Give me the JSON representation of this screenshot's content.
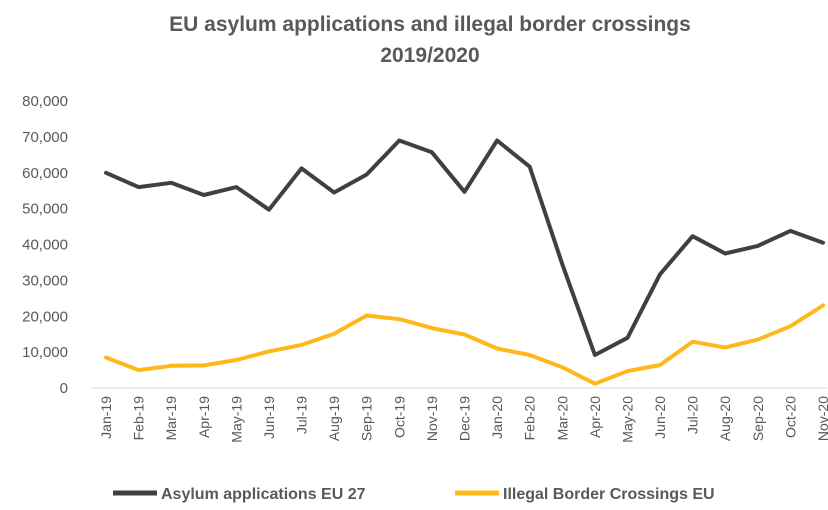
{
  "chart_data": {
    "type": "line",
    "title": "EU asylum applications  and illegal border crossings",
    "subtitle": "2019/2020",
    "xlabel": "",
    "ylabel": "",
    "ylim": [
      0,
      80000
    ],
    "y_ticks": [
      "80,000",
      "70,000",
      "60,000",
      "50,000",
      "40,000",
      "30,000",
      "20,000",
      "10,000",
      "0"
    ],
    "grid": false,
    "legend_position": "bottom",
    "categories": [
      "Jan-19",
      "Feb-19",
      "Mar-19",
      "Apr-19",
      "May-19",
      "Jun-19",
      "Jul-19",
      "Aug-19",
      "Sep-19",
      "Oct-19",
      "Nov-19",
      "Dec-19",
      "Jan-20",
      "Feb-20",
      "Mar-20",
      "Apr-20",
      "May-20",
      "Jun-20",
      "Jul-20",
      "Aug-20",
      "Sep-20",
      "Oct-20",
      "Nov-20"
    ],
    "series": [
      {
        "name": "Asylum applications EU 27",
        "color": "#404040",
        "values": [
          60000,
          56000,
          57200,
          53800,
          56000,
          49700,
          61200,
          54500,
          59500,
          69000,
          65700,
          54700,
          69000,
          61700,
          34500,
          9200,
          14000,
          31700,
          42300,
          37500,
          39600,
          43800,
          40500
        ]
      },
      {
        "name": "Illegal Border Crossings EU",
        "color": "#FFB81C",
        "values": [
          8500,
          5000,
          6200,
          6300,
          7800,
          10200,
          12000,
          15100,
          20200,
          19200,
          16700,
          14900,
          11000,
          9200,
          5800,
          1200,
          4700,
          6400,
          12900,
          11300,
          13500,
          17200,
          23000
        ]
      }
    ]
  }
}
